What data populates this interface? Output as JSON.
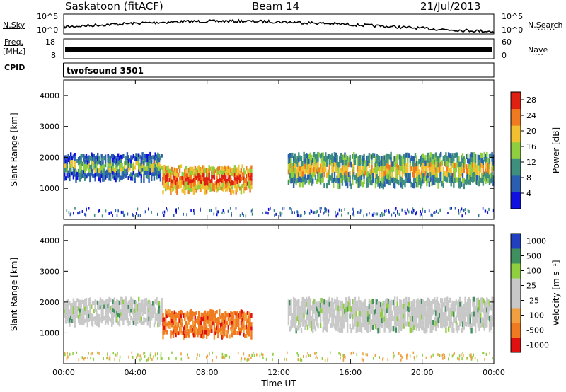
{
  "header": {
    "station": "Saskatoon (fitACF)",
    "beam": "Beam 14",
    "date": "21/Jul/2013"
  },
  "strip": {
    "nsky_label": "N.Sky",
    "nsky_ticks": [
      "10^5",
      "10^0"
    ],
    "nsearch_label": "N.Search",
    "nsearch_ticks": [
      "10^5",
      "10^0"
    ],
    "freq_label": "Freq.",
    "freq_unit": "[MHz]",
    "freq_ticks": [
      "18",
      "8"
    ],
    "nave_label": "Nave",
    "nave_ticks": [
      "60",
      "0"
    ],
    "cpid_label": "CPID",
    "cpid_value": "twofsound 3501"
  },
  "chart_data": [
    {
      "type": "heatmap",
      "panel": "power",
      "ylabel": "Slant Range [km]",
      "xlabel": "",
      "xlim": [
        0,
        24
      ],
      "ylim": [
        0,
        4500
      ],
      "y_ticks": [
        1000,
        2000,
        3000,
        4000
      ],
      "x_ticks": [
        0,
        4,
        8,
        12,
        16,
        20,
        24
      ],
      "colorbar_label": "Power [dB]",
      "colorbar_ticks": [
        "4",
        "8",
        "12",
        "16",
        "20",
        "24",
        "28"
      ],
      "colorscale": [
        "#1010e0",
        "#2a5fb0",
        "#3f8f7f",
        "#8fcf3f",
        "#f0c030",
        "#f07a20",
        "#e02010"
      ],
      "echo_bands": [
        {
          "t_start": 0.0,
          "t_end": 5.5,
          "range_low": 1300,
          "range_high": 2100,
          "power": 10
        },
        {
          "t_start": 5.5,
          "t_end": 10.5,
          "range_low": 900,
          "range_high": 1700,
          "power": 26
        },
        {
          "t_start": 12.5,
          "t_end": 24.0,
          "range_low": 1100,
          "range_high": 2100,
          "power": 14
        }
      ]
    },
    {
      "type": "heatmap",
      "panel": "velocity",
      "ylabel": "Slant Range [km]",
      "xlabel": "Time UT",
      "xlim": [
        0,
        24
      ],
      "ylim": [
        0,
        4500
      ],
      "y_ticks": [
        1000,
        2000,
        3000,
        4000
      ],
      "x_ticks": [
        0,
        4,
        8,
        12,
        16,
        20,
        24
      ],
      "x_tick_labels": [
        "00:00",
        "04:00",
        "08:00",
        "12:00",
        "16:00",
        "20:00",
        "00:00"
      ],
      "colorbar_label": "Velocity [m s^-1]",
      "colorbar_ticks": [
        "1000",
        "500",
        "100",
        "25",
        "-25",
        "-100",
        "-500",
        "-1000"
      ],
      "colorscale": [
        "#e01010",
        "#f07a20",
        "#f0a040",
        "#c8c8c8",
        "#c8c8c8",
        "#8fcf3f",
        "#3f8f5f",
        "#2040c0"
      ],
      "echo_bands": [
        {
          "t_start": 0.0,
          "t_end": 5.5,
          "range_low": 1300,
          "range_high": 2100,
          "velocity": 0
        },
        {
          "t_start": 5.5,
          "t_end": 10.5,
          "range_low": 900,
          "range_high": 1700,
          "velocity": -300
        },
        {
          "t_start": 12.5,
          "t_end": 24.0,
          "range_low": 1100,
          "range_high": 2100,
          "velocity": 0
        }
      ]
    }
  ]
}
